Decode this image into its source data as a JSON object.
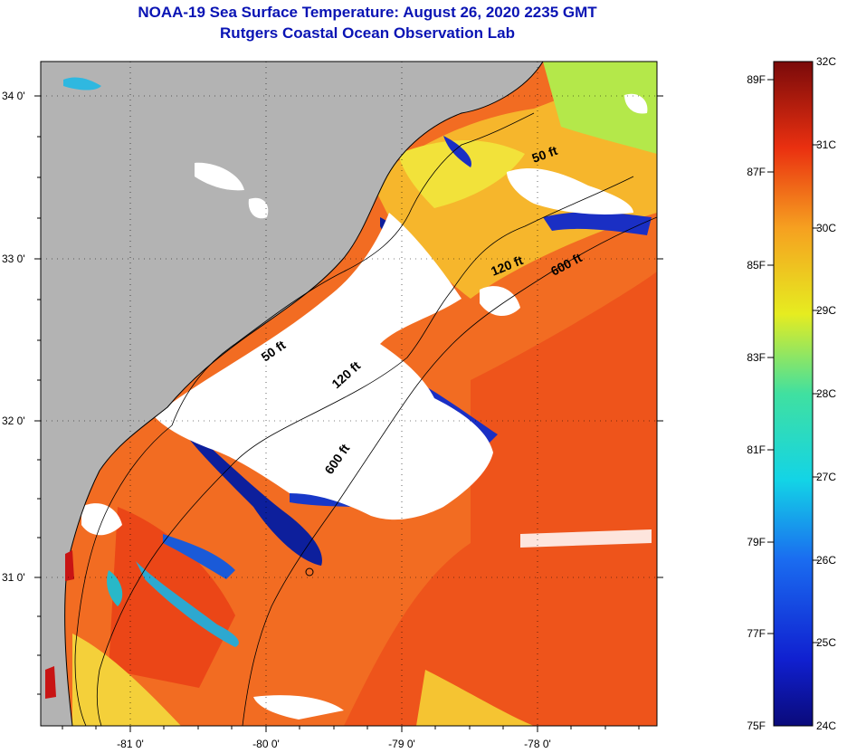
{
  "title_line1": "NOAA-19 Sea Surface Temperature:  August 26, 2020 2235 GMT",
  "title_line2": "Rutgers Coastal Ocean Observation Lab",
  "map": {
    "lat_ticks": [
      {
        "value": 34,
        "label": "34 0'"
      },
      {
        "value": 33,
        "label": "33 0'"
      },
      {
        "value": 32,
        "label": "32 0'"
      },
      {
        "value": 31,
        "label": "31 0'"
      }
    ],
    "lon_ticks": [
      {
        "value": -81,
        "label": "-81 0'"
      },
      {
        "value": -80,
        "label": "-80 0'"
      },
      {
        "value": -79,
        "label": "-79 0'"
      },
      {
        "value": -78,
        "label": "-78 0'"
      }
    ],
    "contour_labels": [
      "50 ft",
      "120 ft",
      "600 ft",
      "50 ft",
      "120 ft",
      "600 ft"
    ],
    "colors": {
      "land": "#b3b3b3",
      "cloud": "#ffffff",
      "warm": "#f46a1e",
      "hot": "#e63214",
      "mid": "#f7b52b",
      "cool": "#f1e83a",
      "cold": "#1f3fd6",
      "coldest": "#0a1a8c",
      "teal": "#33c6b4"
    }
  },
  "colorbar": {
    "celsius_labels": [
      "32C",
      "31C",
      "30C",
      "29C",
      "28C",
      "27C",
      "26C",
      "25C",
      "24C"
    ],
    "fahrenheit_labels": [
      "89F",
      "87F",
      "85F",
      "83F",
      "81F",
      "79F",
      "77F",
      "75F"
    ]
  }
}
